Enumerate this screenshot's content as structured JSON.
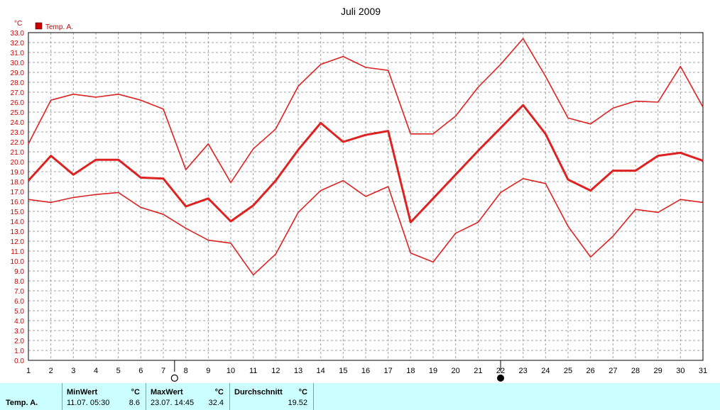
{
  "chart_data": {
    "type": "line",
    "title": "Juli 2009",
    "unit": "°C",
    "legend": [
      "Temp. A."
    ],
    "legend_color": "#cc0000",
    "line_color": "#dd2222",
    "ylim": [
      0,
      33
    ],
    "ytick_step": 1,
    "xlim": [
      1,
      31
    ],
    "x": [
      1,
      2,
      3,
      4,
      5,
      6,
      7,
      8,
      9,
      10,
      11,
      12,
      13,
      14,
      15,
      16,
      17,
      18,
      19,
      20,
      21,
      22,
      23,
      24,
      25,
      26,
      27,
      28,
      29,
      30,
      31
    ],
    "series": [
      {
        "role": "max",
        "values": [
          21.8,
          26.2,
          26.8,
          26.5,
          26.8,
          26.2,
          25.3,
          19.2,
          21.8,
          17.9,
          21.3,
          23.3,
          27.6,
          29.8,
          30.6,
          29.5,
          29.2,
          22.8,
          22.8,
          24.6,
          27.5,
          29.8,
          32.4,
          28.6,
          24.4,
          23.8,
          25.4,
          26.1,
          26.0,
          29.6,
          25.5
        ]
      },
      {
        "role": "mean",
        "values": [
          18.1,
          20.6,
          18.7,
          20.2,
          20.2,
          18.4,
          18.3,
          15.5,
          16.3,
          14.0,
          15.6,
          18.1,
          21.2,
          23.9,
          22.0,
          22.7,
          23.1,
          13.9,
          16.3,
          18.7,
          21.1,
          23.4,
          25.7,
          22.8,
          18.2,
          17.1,
          19.1,
          19.1,
          20.6,
          20.9,
          20.1
        ]
      },
      {
        "role": "min",
        "values": [
          16.2,
          15.9,
          16.4,
          16.7,
          16.9,
          15.4,
          14.7,
          13.3,
          12.1,
          11.8,
          8.6,
          10.7,
          14.9,
          17.1,
          18.1,
          16.5,
          17.5,
          10.8,
          9.9,
          12.8,
          13.9,
          16.9,
          18.3,
          17.8,
          13.5,
          10.4,
          12.5,
          15.2,
          14.9,
          16.2,
          15.9
        ]
      }
    ],
    "moon_phases": [
      {
        "day": 7.5,
        "symbol": "full-moon"
      },
      {
        "day": 22,
        "symbol": "new-moon"
      }
    ],
    "grid": true
  },
  "stats": {
    "row_label": "Temp. A.",
    "min": {
      "header": "MinWert",
      "unit": "°C",
      "when": "11.07.  05:30",
      "value": "8.6"
    },
    "max": {
      "header": "MaxWert",
      "unit": "°C",
      "when": "23.07.  14:45",
      "value": "32.4"
    },
    "avg": {
      "header": "Durchschnitt",
      "unit": "°C",
      "value": "19.52"
    }
  }
}
